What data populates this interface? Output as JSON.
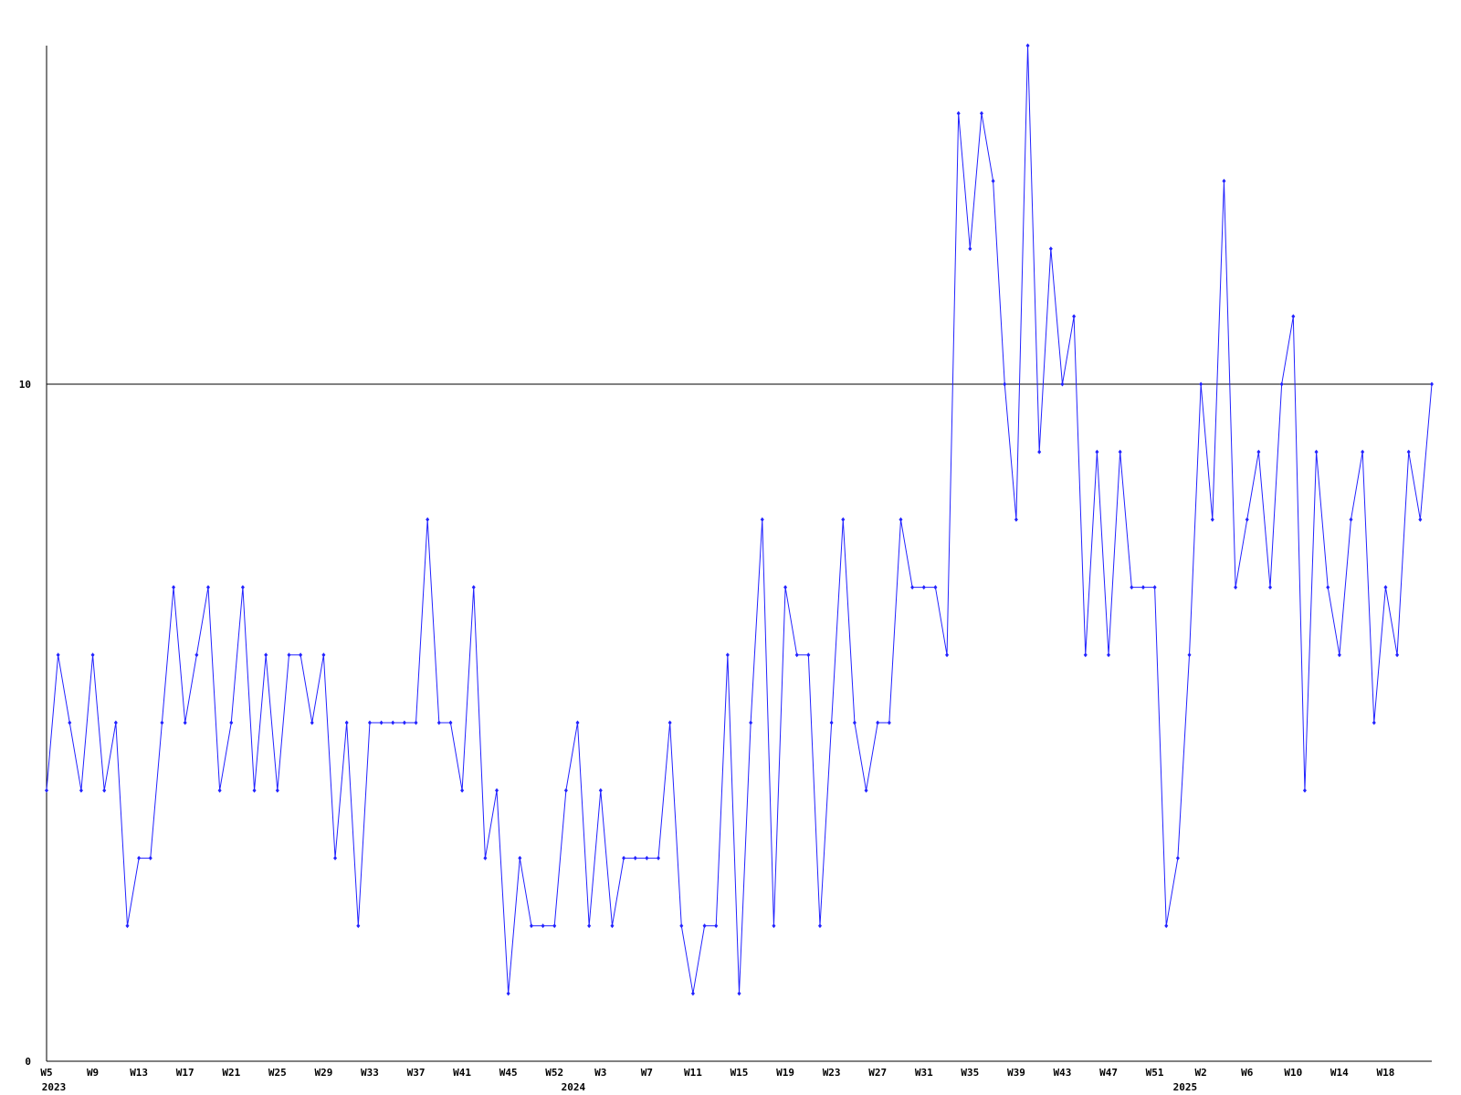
{
  "chart_data": {
    "type": "line",
    "categories": [
      "W5",
      null,
      null,
      null,
      "W9",
      null,
      null,
      null,
      "W13",
      null,
      null,
      null,
      "W17",
      null,
      null,
      null,
      "W21",
      null,
      null,
      null,
      "W25",
      null,
      null,
      null,
      "W29",
      null,
      null,
      null,
      "W33",
      null,
      null,
      null,
      "W37",
      null,
      null,
      null,
      "W41",
      null,
      null,
      null,
      "W45",
      null,
      null,
      null,
      "W52",
      null,
      null,
      null,
      "W3",
      null,
      null,
      null,
      "W7",
      null,
      null,
      null,
      "W11",
      null,
      null,
      null,
      "W15",
      null,
      null,
      null,
      "W19",
      null,
      null,
      null,
      "W23",
      null,
      null,
      null,
      "W27",
      null,
      null,
      null,
      "W31",
      null,
      null,
      null,
      "W35",
      null,
      null,
      null,
      "W39",
      null,
      null,
      null,
      "W43",
      null,
      null,
      null,
      "W47",
      null,
      null,
      null,
      "W51",
      null,
      null,
      null,
      "W2",
      null,
      null,
      null,
      "W6",
      null,
      null,
      null,
      "W10",
      null,
      null,
      null,
      "W14",
      null,
      null,
      null,
      "W18",
      null,
      null,
      null,
      null
    ],
    "category_years": [
      "2023",
      null,
      null,
      null,
      null,
      null,
      null,
      null,
      null,
      null,
      null,
      null,
      null,
      null,
      null,
      null,
      null,
      null,
      null,
      null,
      null,
      null,
      null,
      null,
      null,
      null,
      null,
      null,
      null,
      null,
      null,
      null,
      null,
      null,
      null,
      null,
      null,
      null,
      null,
      null,
      null,
      null,
      null,
      null,
      null,
      "2024",
      null,
      null,
      null,
      null,
      null,
      null,
      null,
      null,
      null,
      null,
      null,
      null,
      null,
      null,
      null,
      null,
      null,
      null,
      null,
      null,
      null,
      null,
      null,
      null,
      null,
      null,
      null,
      null,
      null,
      null,
      null,
      null,
      null,
      null,
      null,
      null,
      null,
      null,
      null,
      null,
      null,
      null,
      null,
      null,
      null,
      null,
      null,
      null,
      null,
      null,
      null,
      null,
      "2025",
      null,
      null,
      null,
      null,
      null,
      null,
      null,
      null,
      null,
      null,
      null,
      null,
      null,
      null,
      null,
      null,
      null,
      null,
      null,
      null,
      null,
      null
    ],
    "values": [
      4,
      6,
      5,
      4,
      6,
      4,
      5,
      2,
      3,
      3,
      5,
      7,
      5,
      6,
      7,
      4,
      5,
      7,
      4,
      6,
      4,
      6,
      6,
      5,
      6,
      3,
      5,
      2,
      5,
      5,
      5,
      5,
      5,
      8,
      5,
      5,
      4,
      7,
      3,
      4,
      1,
      3,
      2,
      2,
      2,
      4,
      5,
      2,
      4,
      2,
      3,
      3,
      3,
      3,
      5,
      2,
      1,
      2,
      2,
      6,
      1,
      5,
      8,
      2,
      7,
      6,
      6,
      2,
      5,
      8,
      5,
      4,
      5,
      5,
      8,
      7,
      7,
      7,
      6,
      14,
      12,
      14,
      13,
      10,
      8,
      15,
      9,
      12,
      10,
      11,
      6,
      9,
      6,
      9,
      7,
      7,
      7,
      2,
      3,
      6,
      10,
      8,
      13,
      7,
      8,
      9,
      7,
      10,
      11,
      4,
      9,
      7,
      6,
      8,
      9,
      5,
      7,
      6,
      9,
      8,
      10
    ],
    "color": "#2222ff",
    "ylim": [
      0,
      15
    ],
    "yticks": [
      0,
      10
    ],
    "grid": true
  }
}
